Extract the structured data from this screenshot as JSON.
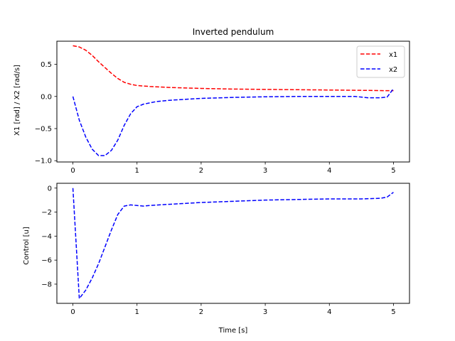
{
  "chart_data": [
    {
      "type": "line",
      "title": "Inverted pendulum",
      "xlabel": "",
      "ylabel": "X1 [rad] / X2 [rad/s]",
      "xlim": [
        -0.25,
        5.25
      ],
      "ylim": [
        -1.02,
        0.86
      ],
      "xticks": [
        0,
        1,
        2,
        3,
        4,
        5
      ],
      "xtick_labels": [
        "0",
        "1",
        "2",
        "3",
        "4",
        "5"
      ],
      "yticks": [
        -1.0,
        -0.5,
        0.0,
        0.5
      ],
      "ytick_labels": [
        "−1.0",
        "−0.5",
        "0.0",
        "0.5"
      ],
      "legend": "top-right",
      "series": [
        {
          "name": "x1",
          "color": "#ff0000",
          "x": [
            0,
            0.1,
            0.2,
            0.3,
            0.4,
            0.5,
            0.6,
            0.7,
            0.8,
            0.9,
            1.0,
            1.2,
            1.5,
            2.0,
            2.5,
            3.0,
            3.5,
            4.0,
            4.5,
            4.9,
            5.0
          ],
          "y": [
            0.79,
            0.77,
            0.72,
            0.64,
            0.54,
            0.45,
            0.36,
            0.28,
            0.22,
            0.19,
            0.17,
            0.155,
            0.14,
            0.125,
            0.115,
            0.11,
            0.105,
            0.1,
            0.095,
            0.09,
            0.09
          ]
        },
        {
          "name": "x2",
          "color": "#0000ff",
          "x": [
            0,
            0.1,
            0.2,
            0.3,
            0.4,
            0.5,
            0.6,
            0.7,
            0.8,
            0.9,
            1.0,
            1.1,
            1.3,
            1.5,
            2.0,
            2.5,
            3.0,
            3.5,
            4.0,
            4.4,
            4.6,
            4.8,
            4.9,
            5.0
          ],
          "y": [
            0.0,
            -0.37,
            -0.63,
            -0.82,
            -0.92,
            -0.92,
            -0.84,
            -0.68,
            -0.45,
            -0.27,
            -0.16,
            -0.12,
            -0.08,
            -0.06,
            -0.03,
            -0.015,
            -0.005,
            0.0,
            0.0,
            0.0,
            -0.02,
            -0.02,
            -0.01,
            0.12
          ]
        }
      ]
    },
    {
      "type": "line",
      "title": "",
      "xlabel": "Time [s]",
      "ylabel": "Control [u]",
      "xlim": [
        -0.25,
        5.25
      ],
      "ylim": [
        -9.6,
        0.4
      ],
      "xticks": [
        0,
        1,
        2,
        3,
        4,
        5
      ],
      "xtick_labels": [
        "0",
        "1",
        "2",
        "3",
        "4",
        "5"
      ],
      "yticks": [
        -8,
        -6,
        -4,
        -2,
        0
      ],
      "ytick_labels": [
        "−8",
        "−6",
        "−4",
        "−2",
        "0"
      ],
      "series": [
        {
          "color": "#0000ff",
          "x": [
            0,
            0.1,
            0.2,
            0.3,
            0.4,
            0.5,
            0.6,
            0.7,
            0.8,
            0.9,
            1.0,
            1.1,
            1.2,
            1.5,
            2.0,
            2.5,
            3.0,
            3.5,
            4.0,
            4.5,
            4.8,
            4.9,
            5.0
          ],
          "y": [
            0.0,
            -9.2,
            -8.5,
            -7.5,
            -6.3,
            -4.9,
            -3.5,
            -2.2,
            -1.5,
            -1.4,
            -1.45,
            -1.5,
            -1.45,
            -1.35,
            -1.2,
            -1.1,
            -1.0,
            -0.95,
            -0.9,
            -0.9,
            -0.85,
            -0.75,
            -0.35
          ]
        }
      ]
    }
  ]
}
